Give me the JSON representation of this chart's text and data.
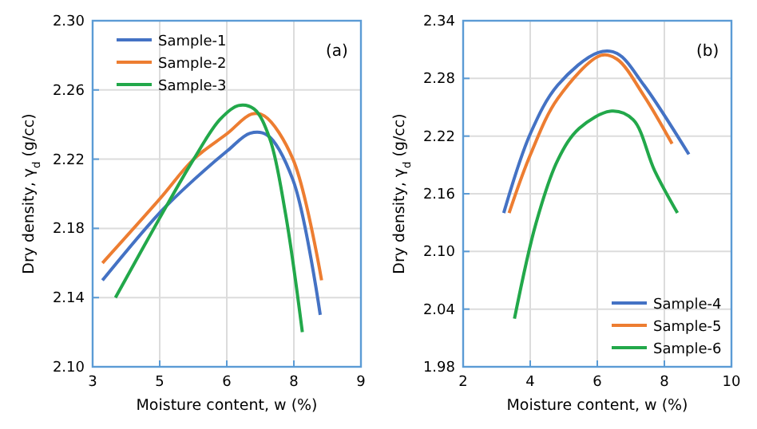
{
  "chart_data": [
    {
      "type": "line",
      "xlabel": "Moisture content, w (%)",
      "ylabel": "Dry density, γ$_{d}$ (g/cc)",
      "annotations": [
        "(a)"
      ],
      "xlim": [
        3,
        9
      ],
      "xticks": [
        3,
        {
          "value": 4.5,
          "label": "5"
        },
        6,
        {
          "value": 7.5,
          "label": "8"
        },
        9
      ],
      "ylim": [
        2.1,
        2.3
      ],
      "yticks": [
        {
          "value": 2.1,
          "label": "2.10"
        },
        {
          "value": 2.14,
          "label": "2.14"
        },
        {
          "value": 2.18,
          "label": "2.18"
        },
        {
          "value": 2.22,
          "label": "2.22"
        },
        {
          "value": 2.26,
          "label": "2.26"
        },
        {
          "value": 2.3,
          "label": "2.30"
        }
      ],
      "grid": true,
      "legend": "top left",
      "marker": "none",
      "line_style": "solid",
      "series": [
        {
          "name": "Sample-1",
          "color": "#4472c4",
          "x": [
            3.22,
            4.5,
            5.26,
            6.02,
            6.52,
            6.9,
            7.48,
            8.09
          ],
          "values": [
            2.15,
            2.189,
            2.208,
            2.225,
            2.235,
            2.234,
            2.208,
            2.13
          ]
        },
        {
          "name": "Sample-2",
          "color": "#ed7d31",
          "x": [
            3.22,
            4.5,
            5.26,
            6.02,
            6.55,
            6.84,
            7.48,
            8.12
          ],
          "values": [
            2.16,
            2.197,
            2.22,
            2.235,
            2.246,
            2.245,
            2.22,
            2.15
          ]
        },
        {
          "name": "Sample-3",
          "color": "#22a84a",
          "x": [
            3.51,
            4.5,
            5.26,
            5.85,
            6.26,
            6.61,
            6.96,
            7.31,
            7.69
          ],
          "values": [
            2.14,
            2.186,
            2.22,
            2.243,
            2.251,
            2.249,
            2.232,
            2.189,
            2.12
          ]
        }
      ]
    },
    {
      "type": "line",
      "xlabel": "Moisture content, w (%)",
      "ylabel": "Dry density, γ$_{d}$ (g/cc)",
      "annotations": [
        "(b)"
      ],
      "xlim": [
        2,
        10
      ],
      "xticks": [
        2,
        4,
        6,
        8,
        10
      ],
      "ylim": [
        1.98,
        2.34
      ],
      "yticks": [
        {
          "value": 1.98,
          "label": "1.98"
        },
        {
          "value": 2.04,
          "label": "2.04"
        },
        {
          "value": 2.1,
          "label": "2.10"
        },
        {
          "value": 2.16,
          "label": "2.16"
        },
        {
          "value": 2.22,
          "label": "2.22"
        },
        {
          "value": 2.28,
          "label": "2.28"
        },
        {
          "value": 2.34,
          "label": "2.34"
        }
      ],
      "grid": true,
      "legend": "bottom right",
      "marker": "none",
      "line_style": "solid",
      "series": [
        {
          "name": "Sample-4",
          "color": "#4472c4",
          "x": [
            3.21,
            4.01,
            4.82,
            6.03,
            6.59,
            7.39,
            8.73
          ],
          "values": [
            2.14,
            2.223,
            2.273,
            2.307,
            2.306,
            2.273,
            2.201
          ]
        },
        {
          "name": "Sample-5",
          "color": "#ed7d31",
          "x": [
            3.37,
            4.01,
            4.82,
            6.11,
            6.59,
            7.39,
            8.23
          ],
          "values": [
            2.14,
            2.201,
            2.259,
            2.304,
            2.3,
            2.262,
            2.212
          ]
        },
        {
          "name": "Sample-6",
          "color": "#22a84a",
          "x": [
            3.53,
            4.17,
            4.82,
            5.46,
            6.43,
            7.07,
            7.71,
            8.39
          ],
          "values": [
            2.03,
            2.129,
            2.195,
            2.228,
            2.246,
            2.237,
            2.184,
            2.14
          ]
        }
      ]
    }
  ]
}
